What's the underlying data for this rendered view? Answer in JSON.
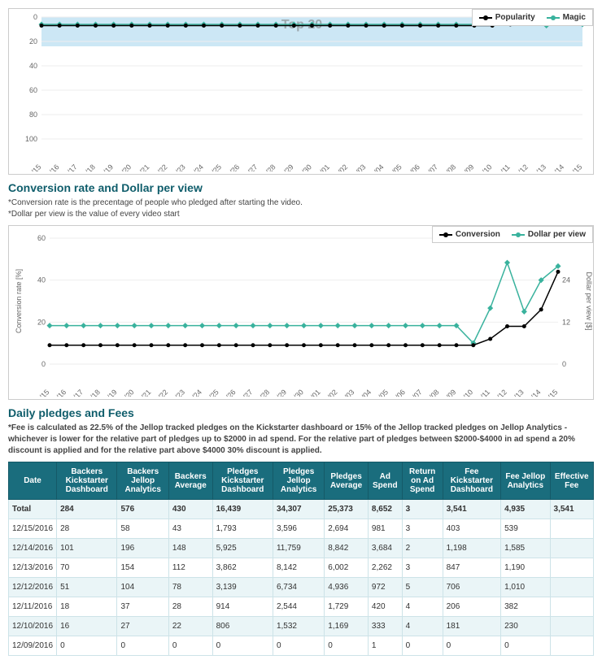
{
  "chart1": {
    "legend": [
      {
        "label": "Popularity",
        "color": "#000000",
        "marker": "circle"
      },
      {
        "label": "Magic",
        "color": "#39b29d",
        "marker": "diamond"
      }
    ],
    "watermark": "Top 20",
    "background_color": "#cce7f5",
    "yaxis": {
      "min": 0,
      "max": 100,
      "step": 20,
      "inverted": true
    },
    "xaxis_labels": [
      "11/15",
      "11/16",
      "11/17",
      "11/18",
      "11/19",
      "11/20",
      "11/21",
      "11/22",
      "11/23",
      "11/24",
      "11/25",
      "11/26",
      "11/27",
      "11/28",
      "11/29",
      "11/30",
      "12/01",
      "12/02",
      "12/03",
      "12/04",
      "12/05",
      "12/06",
      "12/07",
      "12/08",
      "12/09",
      "12/10",
      "12/11",
      "12/12",
      "12/13",
      "12/14",
      "12/15"
    ],
    "series": {
      "popularity": [
        7,
        7,
        7,
        7,
        7,
        7,
        7,
        7,
        7,
        7,
        7,
        7,
        7,
        7,
        7,
        7,
        7,
        7,
        7,
        7,
        7,
        7,
        7,
        7,
        7,
        7,
        6,
        5,
        4,
        5,
        5
      ],
      "magic": [
        6,
        6,
        6,
        6,
        6,
        6,
        6,
        6,
        6,
        6,
        6,
        6,
        6,
        6,
        6,
        6,
        6,
        6,
        6,
        6,
        6,
        6,
        6,
        6,
        6,
        6,
        5,
        5,
        7,
        4,
        6
      ]
    }
  },
  "chart2": {
    "title": "Conversion rate and Dollar per view",
    "note1": "*Conversion rate is the precentage of people who pledged after starting the video.",
    "note2": "*Dollar per view is the value of every video start",
    "legend": [
      {
        "label": "Conversion",
        "color": "#000000",
        "marker": "circle"
      },
      {
        "label": "Dollar per view",
        "color": "#39b29d",
        "marker": "diamond"
      }
    ],
    "yaxis_left": {
      "label": "Conversion rate [%]",
      "min": 0,
      "max": 60,
      "step": 20
    },
    "yaxis_right": {
      "label": "Dollar per view [$]",
      "min": 0,
      "max": 36,
      "step": 12
    },
    "xaxis_labels": [
      "11/15",
      "11/16",
      "11/17",
      "11/18",
      "11/19",
      "11/20",
      "11/21",
      "11/22",
      "11/23",
      "11/24",
      "11/25",
      "11/26",
      "11/27",
      "11/28",
      "11/29",
      "11/30",
      "12/01",
      "12/02",
      "12/03",
      "12/04",
      "12/05",
      "12/06",
      "12/07",
      "12/08",
      "12/09",
      "12/10",
      "12/11",
      "12/12",
      "12/13",
      "12/14",
      "12/15"
    ],
    "series": {
      "conversion": [
        9,
        9,
        9,
        9,
        9,
        9,
        9,
        9,
        9,
        9,
        9,
        9,
        9,
        9,
        9,
        9,
        9,
        9,
        9,
        9,
        9,
        9,
        9,
        9,
        9,
        9,
        12,
        18,
        18,
        26,
        44
      ],
      "dollar_per_view": [
        11,
        11,
        11,
        11,
        11,
        11,
        11,
        11,
        11,
        11,
        11,
        11,
        11,
        11,
        11,
        11,
        11,
        11,
        11,
        11,
        11,
        11,
        11,
        11,
        11,
        6,
        16,
        29,
        15,
        24,
        28
      ]
    }
  },
  "table_section": {
    "title": "Daily pledges and Fees",
    "note": "*Fee is calculated as 22.5% of the Jellop tracked pledges on the Kickstarter dashboard or 15% of the Jellop tracked pledges on Jellop Analytics - whichever is lower for the relative part of pledges up to $2000 in ad spend. For the relative part of pledges between $2000-$4000 in ad spend a 20% discount is applied and for the relative part above $4000 30% discount is applied."
  },
  "table": {
    "columns": [
      "Date",
      "Backers Kickstarter Dashboard",
      "Backers Jellop Analytics",
      "Backers Average",
      "Pledges Kickstarter Dashboard",
      "Pledges Jellop Analytics",
      "Pledges Average",
      "Ad Spend",
      "Return on Ad Spend",
      "Fee Kickstarter Dashboard",
      "Fee Jellop Analytics",
      "Effective Fee"
    ],
    "total": [
      "Total",
      "284",
      "576",
      "430",
      "16,439",
      "34,307",
      "25,373",
      "8,652",
      "3",
      "3,541",
      "4,935",
      "3,541"
    ],
    "rows": [
      [
        "12/15/2016",
        "28",
        "58",
        "43",
        "1,793",
        "3,596",
        "2,694",
        "981",
        "3",
        "403",
        "539",
        ""
      ],
      [
        "12/14/2016",
        "101",
        "196",
        "148",
        "5,925",
        "11,759",
        "8,842",
        "3,684",
        "2",
        "1,198",
        "1,585",
        ""
      ],
      [
        "12/13/2016",
        "70",
        "154",
        "112",
        "3,862",
        "8,142",
        "6,002",
        "2,262",
        "3",
        "847",
        "1,190",
        ""
      ],
      [
        "12/12/2016",
        "51",
        "104",
        "78",
        "3,139",
        "6,734",
        "4,936",
        "972",
        "5",
        "706",
        "1,010",
        ""
      ],
      [
        "12/11/2016",
        "18",
        "37",
        "28",
        "914",
        "2,544",
        "1,729",
        "420",
        "4",
        "206",
        "382",
        ""
      ],
      [
        "12/10/2016",
        "16",
        "27",
        "22",
        "806",
        "1,532",
        "1,169",
        "333",
        "4",
        "181",
        "230",
        ""
      ],
      [
        "12/09/2016",
        "0",
        "0",
        "0",
        "0",
        "0",
        "0",
        "1",
        "0",
        "0",
        "0",
        ""
      ]
    ]
  }
}
